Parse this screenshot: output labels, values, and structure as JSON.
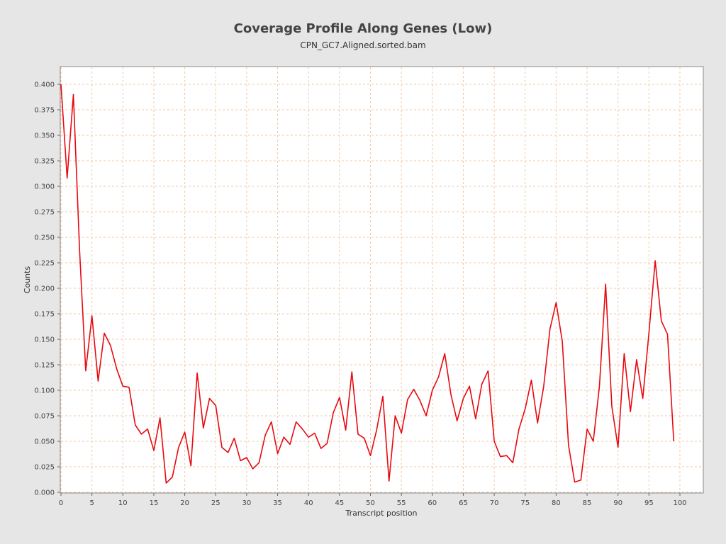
{
  "chart_data": {
    "type": "line",
    "title": "Coverage Profile Along Genes (Low)",
    "subtitle": "CPN_GC7.Aligned.sorted.bam",
    "xlabel": "Transcript position",
    "ylabel": "Counts",
    "xlim": [
      0,
      104
    ],
    "ylim": [
      0,
      0.4
    ],
    "xticks": [
      0,
      5,
      10,
      15,
      20,
      25,
      30,
      35,
      40,
      45,
      50,
      55,
      60,
      65,
      70,
      75,
      80,
      85,
      90,
      95,
      100
    ],
    "yticks": [
      0.0,
      0.025,
      0.05,
      0.075,
      0.1,
      0.125,
      0.15,
      0.175,
      0.2,
      0.225,
      0.25,
      0.275,
      0.3,
      0.325,
      0.35,
      0.375,
      0.4
    ],
    "ytick_labels": [
      "0.000",
      "0.025",
      "0.050",
      "0.075",
      "0.100",
      "0.125",
      "0.150",
      "0.175",
      "0.200",
      "0.225",
      "0.250",
      "0.275",
      "0.300",
      "0.325",
      "0.350",
      "0.375",
      "0.400"
    ],
    "grid": true,
    "colors": {
      "line": "#e8090f",
      "grid": "#f2c9a6",
      "plot_bg": "#ffffff",
      "page_bg": "#e6e6e6"
    },
    "series": [
      {
        "x": [
          0,
          1,
          2,
          3,
          4,
          5,
          6,
          7,
          8,
          9,
          10,
          11,
          12,
          13,
          14,
          15,
          16,
          17,
          18,
          19,
          20,
          21,
          22,
          23,
          24,
          25,
          26,
          27,
          28,
          29,
          30,
          31,
          32,
          33,
          34,
          35,
          36,
          37,
          38,
          39,
          40,
          41,
          42,
          43,
          44,
          45,
          46,
          47,
          48,
          49,
          50,
          51,
          52,
          53,
          54,
          55,
          56,
          57,
          58,
          59,
          60,
          61,
          62,
          63,
          64,
          65,
          66,
          67,
          68,
          69,
          70,
          71,
          72,
          73,
          74,
          75,
          76,
          77,
          78,
          79,
          80,
          81,
          82,
          83,
          84,
          85,
          86,
          87,
          88,
          89,
          90,
          91,
          92,
          93,
          94,
          95,
          96,
          97,
          98,
          99
        ],
        "values": [
          0.4,
          0.308,
          0.39,
          0.238,
          0.119,
          0.173,
          0.109,
          0.156,
          0.144,
          0.121,
          0.104,
          0.103,
          0.066,
          0.057,
          0.062,
          0.041,
          0.073,
          0.009,
          0.015,
          0.044,
          0.059,
          0.026,
          0.117,
          0.063,
          0.092,
          0.085,
          0.044,
          0.039,
          0.053,
          0.031,
          0.034,
          0.023,
          0.029,
          0.056,
          0.069,
          0.038,
          0.054,
          0.047,
          0.069,
          0.062,
          0.054,
          0.058,
          0.043,
          0.048,
          0.078,
          0.093,
          0.061,
          0.118,
          0.057,
          0.053,
          0.036,
          0.061,
          0.094,
          0.011,
          0.075,
          0.058,
          0.091,
          0.101,
          0.09,
          0.075,
          0.1,
          0.113,
          0.136,
          0.096,
          0.07,
          0.092,
          0.104,
          0.072,
          0.106,
          0.119,
          0.05,
          0.035,
          0.036,
          0.029,
          0.062,
          0.082,
          0.11,
          0.068,
          0.104,
          0.16,
          0.186,
          0.148,
          0.046,
          0.01,
          0.012,
          0.062,
          0.05,
          0.104,
          0.204,
          0.084,
          0.044,
          0.136,
          0.079,
          0.13,
          0.092,
          0.157,
          0.227,
          0.168,
          0.155,
          0.05
        ]
      }
    ]
  }
}
